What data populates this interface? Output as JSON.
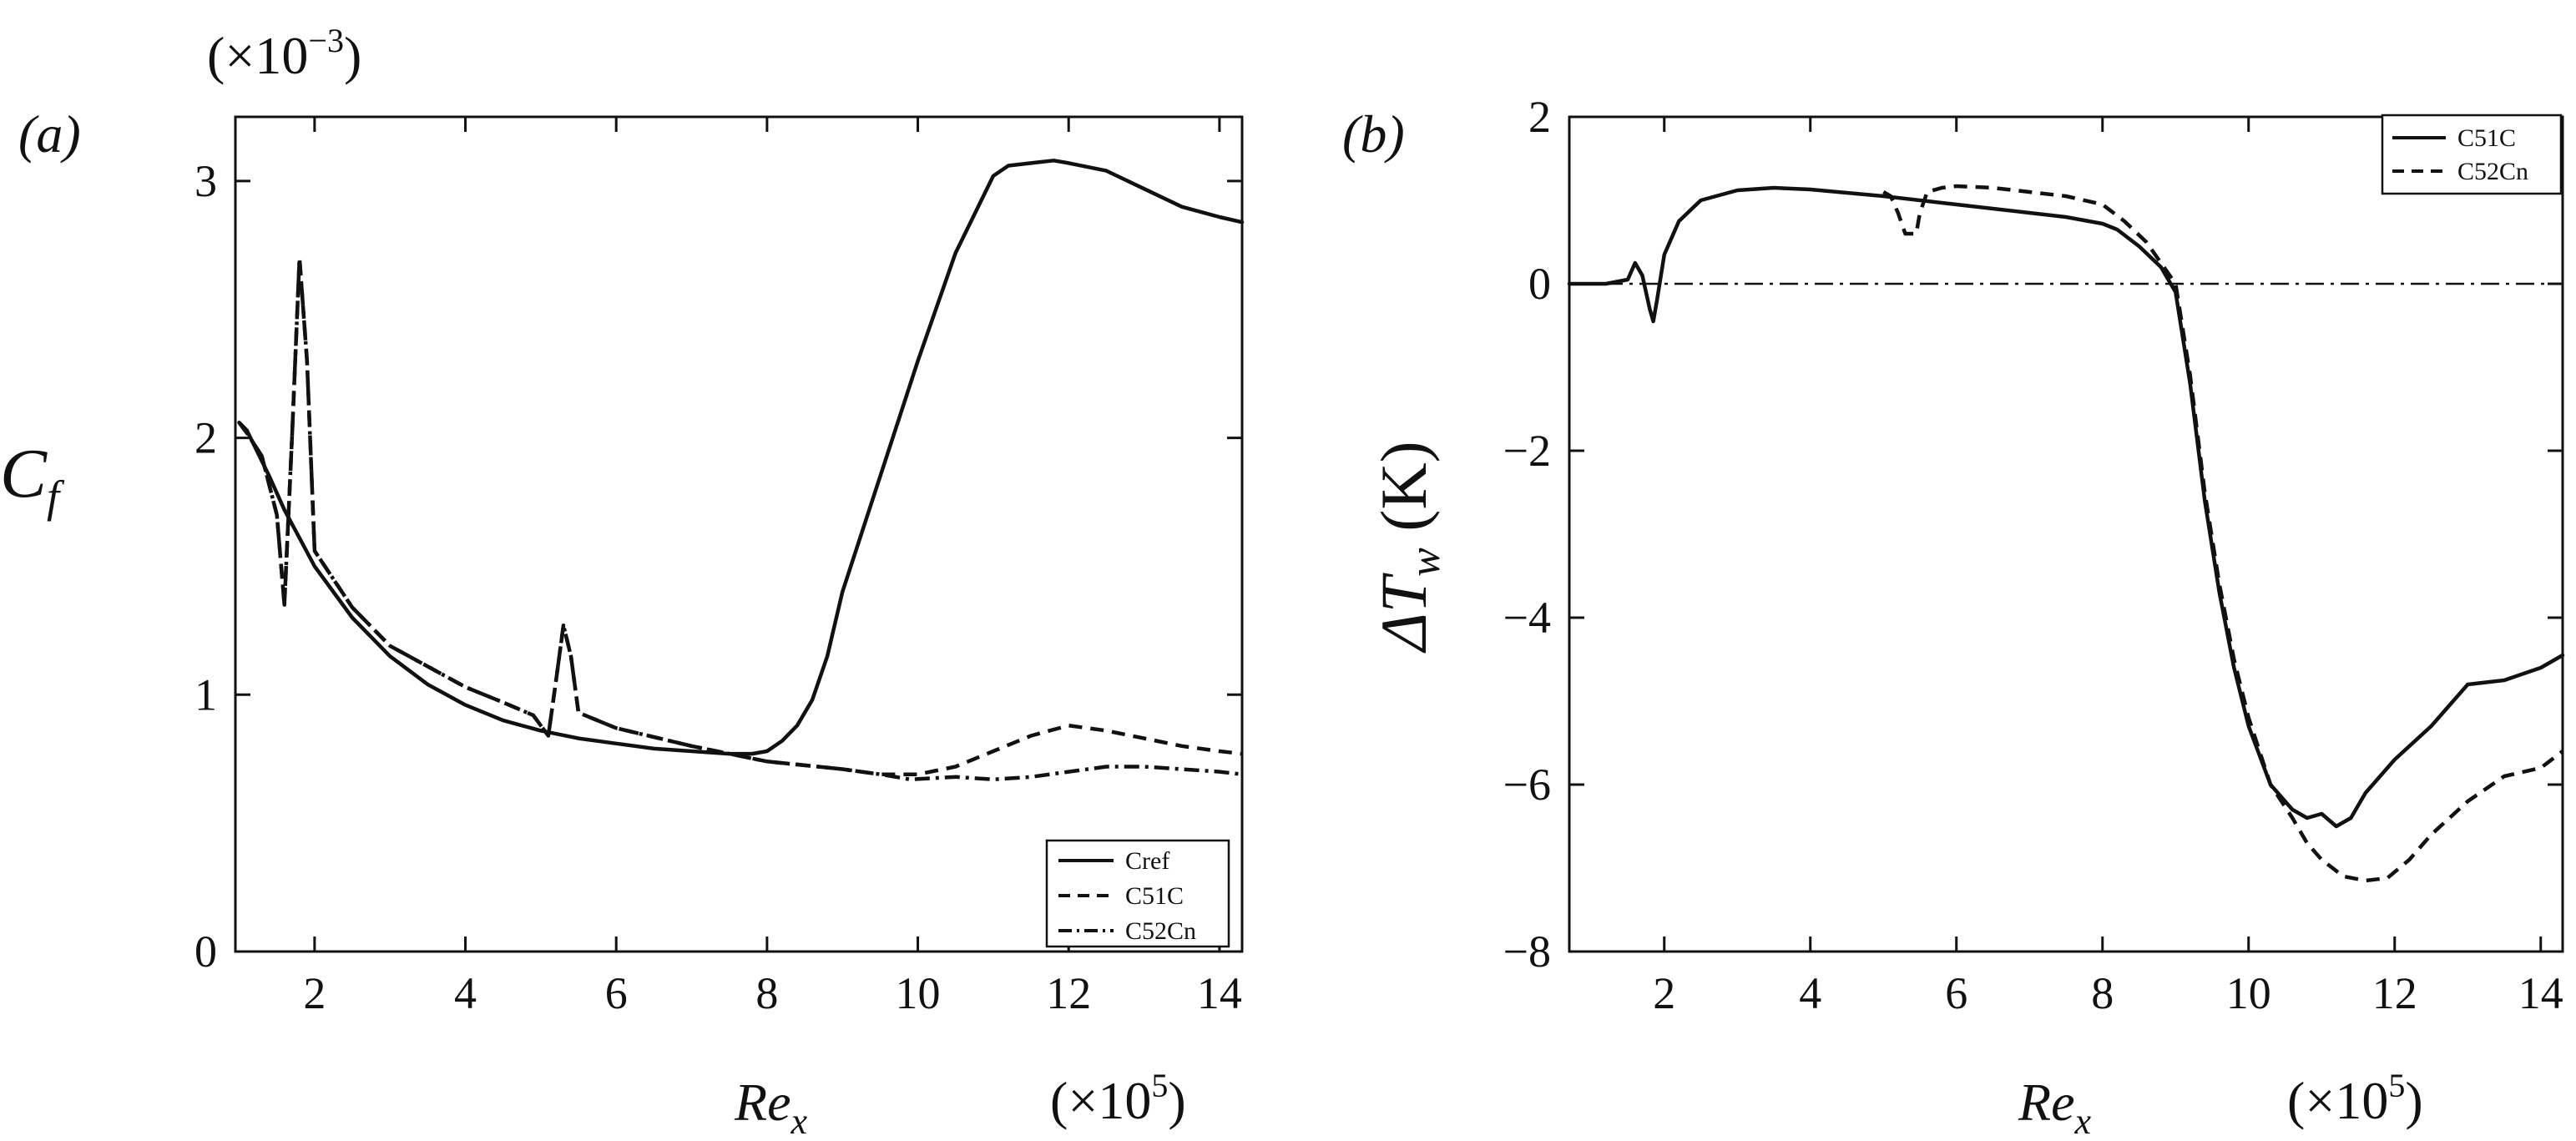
{
  "chart_data": [
    {
      "panel": "(a)",
      "type": "line",
      "ylabel": "C",
      "ylabel_sub": "f",
      "xlabel": "Re",
      "xlabel_sub": "x",
      "y_multiplier": "(×10",
      "y_multiplier_exp": "−3",
      "x_multiplier": "(×10",
      "x_multiplier_exp": "5",
      "xlim": [
        0.95,
        14.3
      ],
      "ylim": [
        0,
        3.25
      ],
      "xticks": [
        2,
        4,
        6,
        8,
        10,
        12,
        14
      ],
      "yticks": [
        0,
        1,
        2,
        3
      ],
      "legend_position": "bottom-right",
      "series": [
        {
          "name": "Cref",
          "dash": "solid",
          "x": [
            1.0,
            1.1,
            1.2,
            1.4,
            1.6,
            1.8,
            2.0,
            2.5,
            3.0,
            3.5,
            4.0,
            4.5,
            5.0,
            5.5,
            6.0,
            6.5,
            7.0,
            7.5,
            7.8,
            8.0,
            8.2,
            8.4,
            8.6,
            8.8,
            9.0,
            9.5,
            10.0,
            10.5,
            11.0,
            11.2,
            11.5,
            11.8,
            12.0,
            12.5,
            13.0,
            13.5,
            14.0,
            14.3
          ],
          "y": [
            2.06,
            2.03,
            1.97,
            1.85,
            1.72,
            1.61,
            1.5,
            1.3,
            1.15,
            1.04,
            0.96,
            0.9,
            0.86,
            0.83,
            0.81,
            0.79,
            0.78,
            0.77,
            0.77,
            0.78,
            0.82,
            0.88,
            0.98,
            1.15,
            1.4,
            1.85,
            2.3,
            2.72,
            3.02,
            3.06,
            3.07,
            3.08,
            3.07,
            3.04,
            2.97,
            2.9,
            2.86,
            2.84
          ]
        },
        {
          "name": "C51C",
          "dash": "dashed",
          "x": [
            1.0,
            1.1,
            1.3,
            1.5,
            1.6,
            1.7,
            1.8,
            1.9,
            2.0,
            2.5,
            3.0,
            4.0,
            4.5,
            4.9,
            5.1,
            5.2,
            5.3,
            5.4,
            5.5,
            6.0,
            7.0,
            8.0,
            9.0,
            9.5,
            10.0,
            10.5,
            11.0,
            11.5,
            12.0,
            12.5,
            13.0,
            13.5,
            14.0,
            14.3
          ],
          "y": [
            2.06,
            2.02,
            1.93,
            1.7,
            1.35,
            2.0,
            2.7,
            2.3,
            1.56,
            1.34,
            1.19,
            1.03,
            0.97,
            0.92,
            0.84,
            1.05,
            1.27,
            1.15,
            0.93,
            0.87,
            0.8,
            0.74,
            0.71,
            0.69,
            0.69,
            0.72,
            0.78,
            0.84,
            0.88,
            0.86,
            0.83,
            0.8,
            0.78,
            0.77
          ]
        },
        {
          "name": "C52Cn",
          "dash": "dashdot",
          "x": [
            1.0,
            1.1,
            1.3,
            1.5,
            1.6,
            1.7,
            1.8,
            1.9,
            2.0,
            2.5,
            3.0,
            4.0,
            4.5,
            4.9,
            5.1,
            5.2,
            5.3,
            5.4,
            5.5,
            6.0,
            7.0,
            8.0,
            9.0,
            9.5,
            9.9,
            10.5,
            11.0,
            11.5,
            12.0,
            12.5,
            13.0,
            13.5,
            14.0,
            14.3
          ],
          "y": [
            2.06,
            2.02,
            1.93,
            1.7,
            1.35,
            2.0,
            2.7,
            2.3,
            1.56,
            1.34,
            1.19,
            1.03,
            0.97,
            0.92,
            0.84,
            1.05,
            1.27,
            1.15,
            0.93,
            0.87,
            0.8,
            0.74,
            0.71,
            0.69,
            0.67,
            0.68,
            0.67,
            0.68,
            0.7,
            0.72,
            0.72,
            0.71,
            0.7,
            0.69
          ]
        }
      ]
    },
    {
      "panel": "(b)",
      "type": "line",
      "ylabel": "ΔT",
      "ylabel_sub": "w",
      "ylabel_unit": " (K)",
      "xlabel": "Re",
      "xlabel_sub": "x",
      "x_multiplier": "(×10",
      "x_multiplier_exp": "5",
      "xlim": [
        0.7,
        14.3
      ],
      "ylim": [
        -8,
        2
      ],
      "xticks": [
        2,
        4,
        6,
        8,
        10,
        12,
        14
      ],
      "yticks": [
        -8,
        -6,
        -4,
        -2,
        0,
        2
      ],
      "ytick_labels": [
        "−8",
        "−6",
        "−4",
        "−2",
        "0",
        "2"
      ],
      "reference_line": 0,
      "legend_position": "top-right",
      "series": [
        {
          "name": "C51C",
          "dash": "solid",
          "x": [
            0.7,
            1.2,
            1.5,
            1.6,
            1.7,
            1.8,
            1.85,
            1.9,
            2.0,
            2.2,
            2.5,
            3.0,
            3.5,
            4.0,
            5.0,
            6.0,
            7.0,
            7.5,
            8.0,
            8.2,
            8.5,
            8.8,
            9.0,
            9.2,
            9.4,
            9.6,
            9.8,
            10.0,
            10.3,
            10.6,
            10.8,
            11.0,
            11.2,
            11.4,
            11.6,
            12.0,
            12.5,
            13.0,
            13.5,
            14.0,
            14.3
          ],
          "y": [
            0.0,
            0.0,
            0.05,
            0.25,
            0.1,
            -0.3,
            -0.45,
            -0.2,
            0.35,
            0.75,
            1.0,
            1.12,
            1.15,
            1.13,
            1.05,
            0.95,
            0.85,
            0.8,
            0.72,
            0.65,
            0.45,
            0.2,
            -0.1,
            -1.2,
            -2.6,
            -3.7,
            -4.6,
            -5.3,
            -6.0,
            -6.3,
            -6.4,
            -6.35,
            -6.5,
            -6.4,
            -6.1,
            -5.7,
            -5.3,
            -4.8,
            -4.75,
            -4.6,
            -4.45
          ]
        },
        {
          "name": "C52Cn",
          "dash": "dashed",
          "x": [
            5.0,
            5.1,
            5.2,
            5.3,
            5.45,
            5.5,
            5.6,
            5.8,
            6.0,
            6.5,
            7.0,
            7.5,
            8.0,
            8.3,
            8.6,
            8.8,
            9.0,
            9.2,
            9.4,
            9.6,
            9.8,
            10.0,
            10.3,
            10.6,
            10.8,
            11.0,
            11.3,
            11.6,
            11.9,
            12.2,
            12.5,
            13.0,
            13.5,
            14.0,
            14.3
          ],
          "y": [
            1.1,
            1.05,
            0.85,
            0.6,
            0.6,
            0.85,
            1.1,
            1.15,
            1.17,
            1.15,
            1.1,
            1.05,
            0.95,
            0.75,
            0.5,
            0.25,
            0.0,
            -1.1,
            -2.5,
            -3.6,
            -4.5,
            -5.2,
            -6.0,
            -6.4,
            -6.7,
            -6.9,
            -7.1,
            -7.15,
            -7.12,
            -6.9,
            -6.6,
            -6.2,
            -5.9,
            -5.8,
            -5.6
          ]
        }
      ]
    }
  ]
}
